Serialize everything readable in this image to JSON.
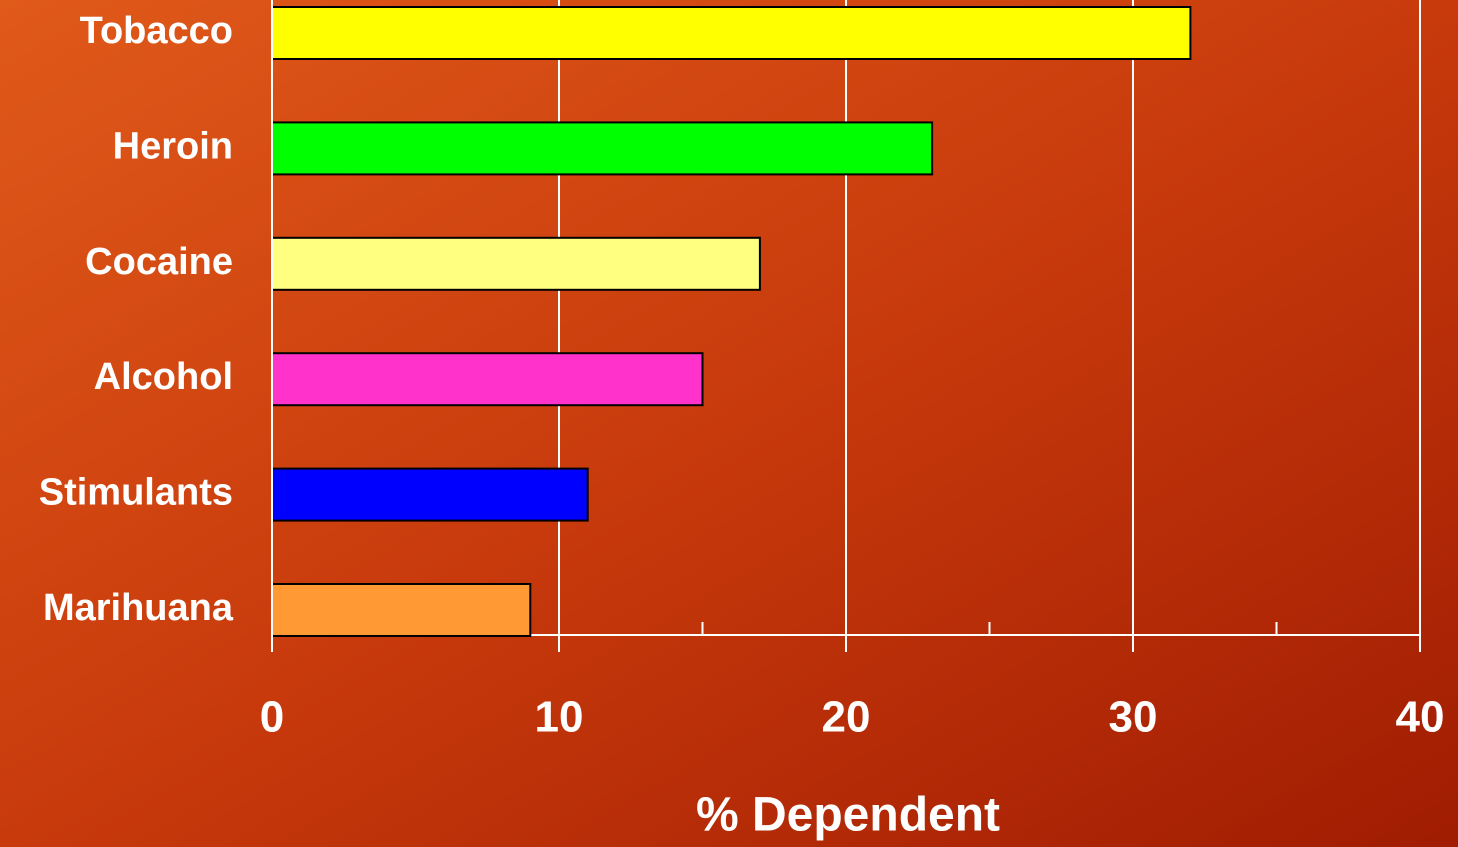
{
  "chart_data": {
    "type": "barh",
    "categories": [
      "Tobacco",
      "Heroin",
      "Cocaine",
      "Alcohol",
      "Stimulants",
      "Marihuana"
    ],
    "values": [
      32,
      23,
      17,
      15,
      11,
      9
    ],
    "colors": [
      "#ffff00",
      "#00ff00",
      "#ffff80",
      "#ff33cc",
      "#0000ff",
      "#ff9933"
    ],
    "x_label": "% Dependent",
    "xlim": [
      0,
      40
    ],
    "xticks": [
      0,
      10,
      20,
      30,
      40
    ],
    "xminorticks": [
      5,
      15,
      25,
      35
    ],
    "grid": true
  }
}
